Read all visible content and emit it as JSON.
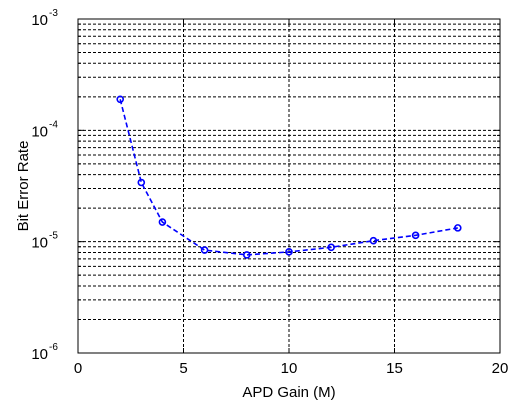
{
  "chart_data": {
    "type": "line",
    "title": "",
    "xlabel": "APD Gain (M)",
    "ylabel": "Bit Error Rate",
    "xlim": [
      0,
      20
    ],
    "ylim": [
      1e-06,
      0.001
    ],
    "yscale": "log",
    "grid": true,
    "x_ticks": [
      0,
      5,
      10,
      15,
      20
    ],
    "y_ticks": [
      {
        "base": "10",
        "exp": "-6",
        "value": 1e-06
      },
      {
        "base": "10",
        "exp": "-5",
        "value": 1e-05
      },
      {
        "base": "10",
        "exp": "-4",
        "value": 0.0001
      },
      {
        "base": "10",
        "exp": "-3",
        "value": 0.001
      }
    ],
    "series": [
      {
        "color": "#0000ff",
        "line_style": "dashed",
        "marker": "circle",
        "x": [
          2,
          3,
          4,
          6,
          8,
          10,
          12,
          14,
          16,
          18
        ],
        "y": [
          0.00019,
          3.4e-05,
          1.5e-05,
          8.4e-06,
          7.6e-06,
          8.1e-06,
          8.9e-06,
          1.02e-05,
          1.14e-05,
          1.33e-05
        ]
      }
    ]
  }
}
